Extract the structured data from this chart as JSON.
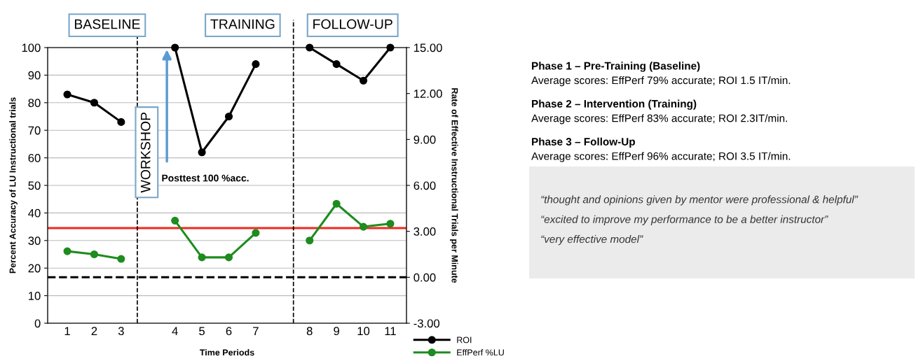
{
  "chart_data": {
    "type": "line",
    "xlabel": "Time Periods",
    "ylabel": "Percent Accuracy of LU Instructional trials",
    "y2label": "Rate of Effective Instructional Trials per Minute",
    "categories": [
      "1",
      "2",
      "3",
      null,
      "4",
      "5",
      "6",
      "7",
      null,
      "8",
      "9",
      "10",
      "11"
    ],
    "series": [
      {
        "name": "ROI",
        "color": "#000000",
        "values": [
          83,
          80,
          73,
          null,
          100,
          62,
          75,
          94,
          null,
          100,
          94,
          88,
          100
        ]
      },
      {
        "name": "EffPerf %LU",
        "color": "#1e8c1e",
        "axis": "y2",
        "values": [
          1.7,
          1.5,
          1.2,
          null,
          3.7,
          1.3,
          1.3,
          2.9,
          null,
          2.4,
          4.8,
          3.3,
          3.5
        ]
      }
    ],
    "ylim": [
      0,
      100
    ],
    "yticks": [
      0,
      10,
      20,
      30,
      40,
      50,
      60,
      70,
      80,
      90,
      100
    ],
    "y2lim": [
      -3,
      15
    ],
    "y2ticks": [
      {
        "value": -3,
        "label": "-3.00"
      },
      {
        "value": 0,
        "label": "0.00"
      },
      {
        "value": 3,
        "label": "3.00"
      },
      {
        "value": 6,
        "label": "6.00"
      },
      {
        "value": 9,
        "label": "9.00"
      },
      {
        "value": 12,
        "label": "12.00"
      },
      {
        "value": 15,
        "label": "15.00"
      }
    ],
    "ref_lines": [
      {
        "axis": "y",
        "value": 34.5,
        "color": "#ee2a1e",
        "line_style": "solid"
      },
      {
        "axis": "y2",
        "value": 0,
        "color": "#000000",
        "line_style": "dashed"
      }
    ],
    "grid": "y",
    "marker": "circle",
    "line_style": "solid",
    "legend": "bottom right",
    "annotations": [
      "BASELINE",
      "TRAINING",
      "FOLLOW-UP",
      "WORKSHOP",
      "Posttest 100 %acc.",
      "Phase 1 – Pre-Training (Baseline)",
      "Average scores: EffPerf 79% accurate; ROI 1.5 IT/min.",
      "Phase 2 – Intervention (Training)",
      "Average scores: EffPerf 83% accurate; ROI 2.3IT/min.",
      "Phase 3 – Follow-Up",
      "Average scores: EffPerf 96% accurate; ROI 3.5 IT/min.",
      "“thought and opinions given by mentor were professional & helpful”",
      "“excited to improve my performance to be a better instructor”",
      "“very effective model”"
    ]
  }
}
